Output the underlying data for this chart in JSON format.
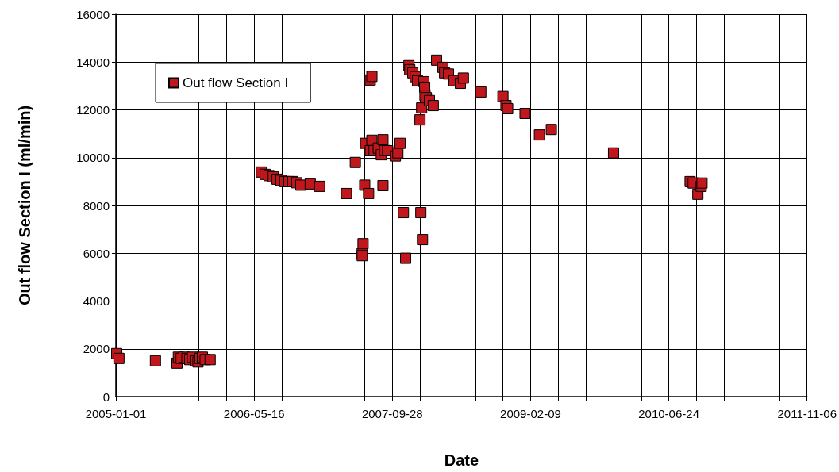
{
  "chart_data": {
    "type": "scatter",
    "xlabel": "Date",
    "ylabel": "Out flow Section I (ml/min)",
    "xlim": [
      "2005-01-01",
      "2011-11-06"
    ],
    "xticks": [
      "2005-01-01",
      {
        "value": "2005-04-11",
        "label": null
      },
      {
        "value": "2005-07-20",
        "label": null
      },
      {
        "value": "2005-10-28",
        "label": null
      },
      {
        "value": "2006-02-05",
        "label": null
      },
      "2006-05-16",
      {
        "value": "2006-08-24",
        "label": null
      },
      {
        "value": "2006-12-02",
        "label": null
      },
      {
        "value": "2007-03-12",
        "label": null
      },
      {
        "value": "2007-06-20",
        "label": null
      },
      "2007-09-28",
      {
        "value": "2008-01-06",
        "label": null
      },
      {
        "value": "2008-04-15",
        "label": null
      },
      {
        "value": "2008-07-24",
        "label": null
      },
      {
        "value": "2008-11-01",
        "label": null
      },
      "2009-02-09",
      {
        "value": "2009-05-20",
        "label": null
      },
      {
        "value": "2009-08-28",
        "label": null
      },
      {
        "value": "2009-12-06",
        "label": null
      },
      {
        "value": "2010-03-16",
        "label": null
      },
      "2010-06-24",
      {
        "value": "2010-10-02",
        "label": null
      },
      {
        "value": "2011-01-10",
        "label": null
      },
      {
        "value": "2011-04-20",
        "label": null
      },
      {
        "value": "2011-07-29",
        "label": null
      },
      "2011-11-06"
    ],
    "ylim": [
      0,
      16000
    ],
    "yticks": [
      0,
      2000,
      4000,
      6000,
      8000,
      10000,
      12000,
      14000,
      16000
    ],
    "grid": true,
    "legend": "top left",
    "marker": "square",
    "series": [
      {
        "name": "Out flow Section I",
        "color": "#c0171c",
        "x": [
          "2005-01-04",
          "2005-01-12",
          "2005-05-24",
          "2005-08-10",
          "2005-08-15",
          "2005-08-25",
          "2005-09-05",
          "2005-09-15",
          "2005-09-25",
          "2005-10-05",
          "2005-10-15",
          "2005-10-25",
          "2005-11-01",
          "2005-11-10",
          "2005-11-20",
          "2005-12-08",
          "2006-06-11",
          "2006-06-25",
          "2006-07-09",
          "2006-07-24",
          "2006-08-07",
          "2006-08-21",
          "2006-09-04",
          "2006-09-19",
          "2006-10-03",
          "2006-10-17",
          "2006-11-01",
          "2006-12-05",
          "2007-01-08",
          "2007-04-15",
          "2007-05-17",
          "2007-06-11",
          "2007-06-11",
          "2007-06-14",
          "2007-06-20",
          "2007-06-23",
          "2007-07-04",
          "2007-07-10",
          "2007-07-10",
          "2007-07-16",
          "2007-07-16",
          "2007-07-24",
          "2007-08-08",
          "2007-08-19",
          "2007-08-25",
          "2007-08-25",
          "2007-08-31",
          "2007-09-11",
          "2007-10-09",
          "2007-10-18",
          "2007-10-26",
          "2007-11-07",
          "2007-11-15",
          "2007-11-27",
          "2007-11-30",
          "2007-12-11",
          "2007-12-20",
          "2007-12-28",
          "2008-01-06",
          "2008-01-09",
          "2008-01-12",
          "2008-01-15",
          "2008-01-20",
          "2008-01-23",
          "2008-01-24",
          "2008-01-29",
          "2008-02-09",
          "2008-02-23",
          "2008-03-06",
          "2008-03-29",
          "2008-04-04",
          "2008-04-18",
          "2008-05-08",
          "2008-05-31",
          "2008-06-11",
          "2008-08-13",
          "2008-11-01",
          "2008-11-12",
          "2008-11-18",
          "2009-01-20",
          "2009-03-13",
          "2009-04-25",
          "2009-12-06",
          "2010-09-09",
          "2010-09-20",
          "2010-10-07",
          "2010-10-19",
          "2010-10-22"
        ],
        "values": [
          1800,
          1600,
          1500,
          1400,
          1650,
          1600,
          1650,
          1600,
          1550,
          1650,
          1500,
          1450,
          1600,
          1650,
          1550,
          1550,
          9400,
          9300,
          9250,
          9200,
          9100,
          9050,
          9000,
          9000,
          9000,
          8950,
          8850,
          8900,
          8800,
          8500,
          9800,
          6000,
          5900,
          6400,
          8850,
          10600,
          8500,
          13250,
          10290,
          13400,
          10730,
          10290,
          10400,
          10120,
          8830,
          10750,
          10300,
          10290,
          10070,
          10200,
          10600,
          7700,
          5790,
          13850,
          13680,
          13550,
          13390,
          13220,
          11580,
          7700,
          12080,
          6570,
          13180,
          12950,
          12610,
          12510,
          12390,
          12180,
          14080,
          13780,
          13550,
          13500,
          13220,
          13110,
          13330,
          12750,
          12560,
          12180,
          12050,
          11850,
          10950,
          11180,
          10200,
          9000,
          8940,
          8470,
          8800,
          8940
        ]
      }
    ]
  }
}
